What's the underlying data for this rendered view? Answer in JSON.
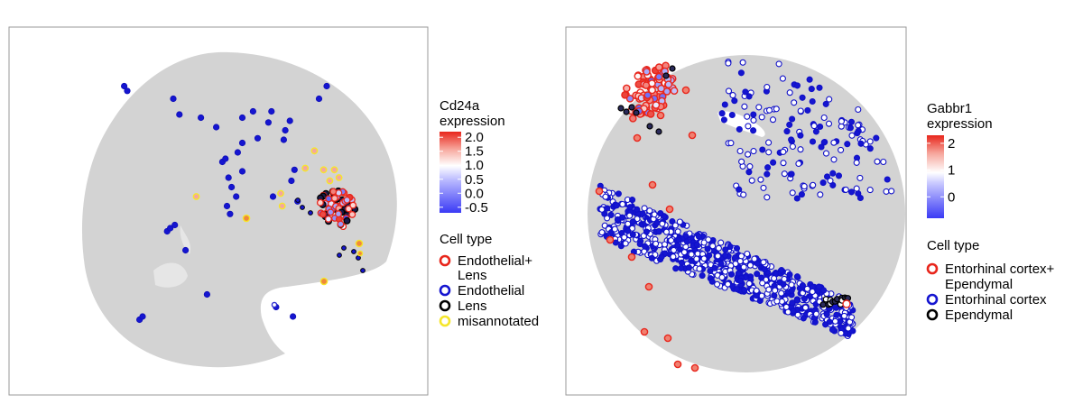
{
  "chart_data": [
    {
      "type": "scatter",
      "panel": "left",
      "tissue": "circular tissue section with a notch at bottom-right",
      "axes": {
        "ticks_shown": false,
        "tick_labels": []
      },
      "colorbar": {
        "title_lines": [
          "Cd24a",
          "expression"
        ],
        "tick_labels": [
          "2.0",
          "1.5",
          "1.0",
          "0.5",
          "0.0",
          "-0.5"
        ],
        "ticks": [
          2.0,
          1.5,
          1.0,
          0.5,
          0.0,
          -0.5
        ],
        "range": [
          -0.7,
          2.2
        ],
        "colors": {
          "low": "#3a3af5",
          "mid": "#ffffff",
          "high": "#e8261c"
        }
      },
      "legend": {
        "title": "Cell type",
        "entries": [
          {
            "label_lines": [
              "Endothelial+",
              "Lens"
            ],
            "ring_color": "#e8261c"
          },
          {
            "label_lines": [
              "Endothelial"
            ],
            "ring_color": "#1515d0"
          },
          {
            "label_lines": [
              "Lens"
            ],
            "ring_color": "#000000"
          },
          {
            "label_lines": [
              "misannotated"
            ],
            "ring_color": "#f5e62a"
          }
        ]
      },
      "series": [
        {
          "name": "Endothelial",
          "expression": -0.5,
          "points": [
            [
              -0.62,
              -0.7
            ],
            [
              -0.6,
              -0.68
            ],
            [
              -0.18,
              -0.54
            ],
            [
              0.27,
              -0.62
            ],
            [
              0.38,
              -0.68
            ],
            [
              -0.32,
              -0.26
            ],
            [
              -0.44,
              -0.14
            ],
            [
              -0.42,
              -0.12
            ],
            [
              -0.39,
              -0.1
            ],
            [
              -0.03,
              -0.03
            ],
            [
              -0.05,
              0.02
            ],
            [
              0.01,
              0.08
            ],
            [
              -0.02,
              0.14
            ],
            [
              -0.04,
              0.2
            ],
            [
              0.05,
              0.24
            ],
            [
              -0.08,
              0.3
            ],
            [
              -0.06,
              0.32
            ],
            [
              0.02,
              0.36
            ],
            [
              0.05,
              0.42
            ],
            [
              -0.12,
              0.52
            ],
            [
              0.05,
              0.58
            ],
            [
              0.12,
              0.62
            ],
            [
              0.15,
              0.45
            ],
            [
              0.22,
              0.55
            ],
            [
              0.24,
              0.62
            ],
            [
              0.32,
              0.44
            ],
            [
              0.33,
              0.5
            ],
            [
              0.36,
              0.56
            ],
            [
              -0.22,
              0.58
            ],
            [
              -0.36,
              0.6
            ],
            [
              0.39,
              0.25
            ],
            [
              0.37,
              0.18
            ],
            [
              0.41,
              0.05
            ],
            [
              -0.7,
              0.75
            ],
            [
              -0.72,
              0.78
            ],
            [
              -0.4,
              0.7
            ],
            [
              0.55,
              0.7
            ],
            [
              0.6,
              0.78
            ],
            [
              0.25,
              0.08
            ]
          ]
        },
        {
          "name": "Endothelial+Lens",
          "expression": 1.0,
          "points": [
            [
              0.45,
              -0.05
            ],
            [
              0.49,
              -0.02
            ],
            [
              0.52,
              -0.08
            ],
            [
              0.47,
              -0.1
            ],
            [
              0.55,
              -0.04
            ],
            [
              0.43,
              0.03
            ],
            [
              0.5,
              0.04
            ],
            [
              0.57,
              0.02
            ],
            [
              0.53,
              0.1
            ],
            [
              0.45,
              0.08
            ],
            [
              0.6,
              -0.06
            ],
            [
              0.48,
              -0.14
            ]
          ]
        },
        {
          "name": "Lens",
          "expression": 0.0,
          "points": [
            [
              0.5,
              0.0
            ],
            [
              0.54,
              -0.06
            ],
            [
              0.46,
              0.06
            ],
            [
              0.58,
              0.08
            ]
          ]
        },
        {
          "name": "misannotated",
          "expression": 1.5,
          "points": [
            [
              0.62,
              0.18
            ],
            [
              0.58,
              0.25
            ],
            [
              0.65,
              0.25
            ],
            [
              0.31,
              0.02
            ],
            [
              0.3,
              0.1
            ],
            [
              0.52,
              0.37
            ],
            [
              0.68,
              0.2
            ],
            [
              0.46,
              0.26
            ],
            [
              -0.25,
              0.08
            ]
          ]
        }
      ]
    },
    {
      "type": "scatter",
      "panel": "right",
      "tissue": "circular tissue section",
      "axes": {
        "ticks_shown": false,
        "tick_labels": []
      },
      "colorbar": {
        "title_lines": [
          "Gabbr1",
          "expression"
        ],
        "tick_labels": [
          "2",
          "1",
          "0"
        ],
        "ticks": [
          2,
          1,
          0
        ],
        "range": [
          -0.8,
          2.3
        ],
        "colors": {
          "low": "#3a3af5",
          "mid": "#ffffff",
          "high": "#e8261c"
        }
      },
      "legend": {
        "title": "Cell type",
        "entries": [
          {
            "label_lines": [
              "Entorhinal cortex+",
              "Ependymal"
            ],
            "ring_color": "#e8261c"
          },
          {
            "label_lines": [
              "Entorhinal cortex"
            ],
            "ring_color": "#1515d0"
          },
          {
            "label_lines": [
              "Ependymal"
            ],
            "ring_color": "#000000"
          }
        ]
      },
      "series": [
        {
          "name": "Entorhinal cortex+Ependymal",
          "expression": 1.5,
          "points": [
            [
              -0.7,
              -0.72
            ],
            [
              -0.62,
              -0.65
            ],
            [
              -0.6,
              -0.55
            ],
            [
              -0.72,
              -0.5
            ],
            [
              -0.55,
              -0.6
            ],
            [
              -0.66,
              -0.58
            ],
            [
              -0.6,
              -0.75
            ],
            [
              -0.52,
              -0.7
            ],
            [
              0.58,
              0.5
            ],
            [
              -0.6,
              0.12
            ],
            [
              -0.55,
              0.7
            ],
            [
              -0.45,
              0.78
            ],
            [
              0.22,
              0.6
            ],
            [
              0.7,
              0.22
            ]
          ]
        },
        {
          "name": "Entorhinal cortex",
          "expression": 0.0,
          "band": "diagonal band from left middle to lower right, plus scattered upper right"
        },
        {
          "name": "Ependymal",
          "expression": 0.5,
          "points": [
            [
              -0.68,
              -0.52
            ],
            [
              -0.64,
              -0.48
            ],
            [
              0.58,
              0.48
            ],
            [
              0.62,
              0.49
            ],
            [
              -0.57,
              -0.64
            ]
          ]
        }
      ]
    }
  ]
}
